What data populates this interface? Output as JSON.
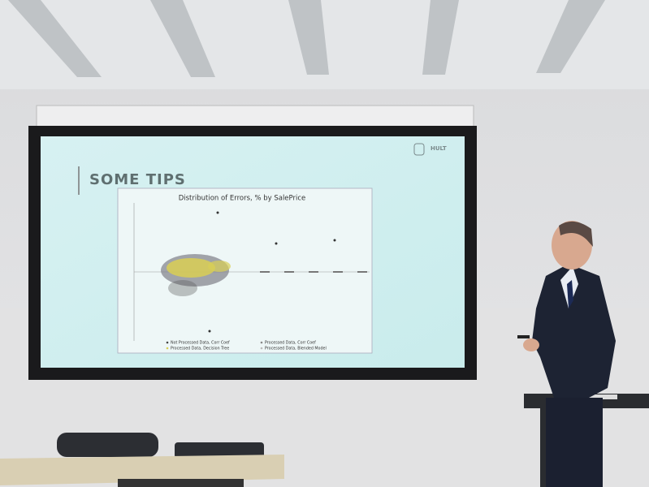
{
  "slide": {
    "title": "SOME TIPS",
    "logo": "HULT",
    "chart": {
      "title": "Distribution of Errors, % by SalePrice",
      "legend": [
        "Not Processed Data, Corr Coef",
        "Processed Data, Corr Coef",
        "Processed Data, Decision Tree",
        "Processed Data, Blended Model"
      ]
    }
  }
}
